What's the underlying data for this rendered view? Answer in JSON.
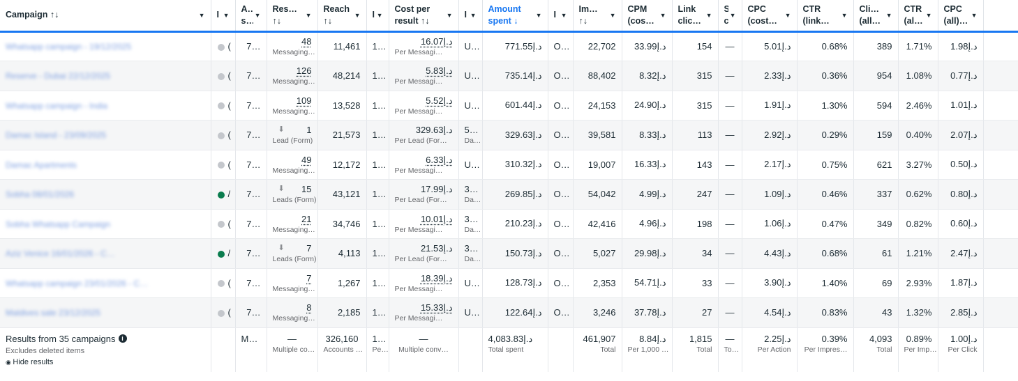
{
  "headers": [
    {
      "l1": "Campaign ↑↓",
      "l2": ""
    },
    {
      "l1": "I",
      "l2": ""
    },
    {
      "l1": "A…",
      "l2": "s…"
    },
    {
      "l1": "Res…",
      "l2": "↑↓"
    },
    {
      "l1": "Reach",
      "l2": "↑↓"
    },
    {
      "l1": "I",
      "l2": ""
    },
    {
      "l1": "Cost per",
      "l2": "result ↑↓"
    },
    {
      "l1": "I",
      "l2": ""
    },
    {
      "l1": "Amount",
      "l2": "spent ↓"
    },
    {
      "l1": "I",
      "l2": ""
    },
    {
      "l1": "Im…",
      "l2": "↑↓"
    },
    {
      "l1": "CPM",
      "l2": "(cos…"
    },
    {
      "l1": "Link",
      "l2": "clic…"
    },
    {
      "l1": "S",
      "l2": "c"
    },
    {
      "l1": "CPC",
      "l2": "(cost…"
    },
    {
      "l1": "CTR",
      "l2": "(link…"
    },
    {
      "l1": "Cli…",
      "l2": "(all…"
    },
    {
      "l1": "CTR",
      "l2": "(all…"
    },
    {
      "l1": "CPC",
      "l2": "(all)…"
    }
  ],
  "rows": [
    {
      "name": "Whatsapp campaign - 19/12/2025",
      "on": false,
      "d1": "(",
      "a": "7…",
      "res": "48",
      "resSub": "Messaging…",
      "resDl": false,
      "reach": "11,461",
      "f": "1…",
      "cpr": "16.07د.إ",
      "cprUl": true,
      "cprSub": "Per Messagi…",
      "e1": "U…",
      "e2": "",
      "spent": "771.55د.إ",
      "g": "O…",
      "imp": "22,702",
      "cpm": "33.99د.إ",
      "link": "154",
      "s": "—",
      "cpc": "5.01د.إ",
      "ctr": "0.68%",
      "cli": "389",
      "ctra": "1.71%",
      "cpca": "1.98د.إ"
    },
    {
      "name": "Reserve - Dubai 22/12/2025",
      "on": false,
      "d1": "(",
      "a": "7…",
      "res": "126",
      "resSub": "Messaging…",
      "resDl": false,
      "reach": "48,214",
      "f": "1…",
      "cpr": "5.83د.إ",
      "cprUl": true,
      "cprSub": "Per Messagi…",
      "e1": "U…",
      "e2": "",
      "spent": "735.14د.إ",
      "g": "O…",
      "imp": "88,402",
      "cpm": "8.32د.إ",
      "link": "315",
      "s": "—",
      "cpc": "2.33د.إ",
      "ctr": "0.36%",
      "cli": "954",
      "ctra": "1.08%",
      "cpca": "0.77د.إ"
    },
    {
      "name": "Whatsapp campaign - India",
      "on": false,
      "d1": "(",
      "a": "7…",
      "res": "109",
      "resSub": "Messaging…",
      "resDl": false,
      "reach": "13,528",
      "f": "1…",
      "cpr": "5.52د.إ",
      "cprUl": true,
      "cprSub": "Per Messagi…",
      "e1": "U…",
      "e2": "",
      "spent": "601.44د.إ",
      "g": "O…",
      "imp": "24,153",
      "cpm": "24.90د.إ",
      "link": "315",
      "s": "—",
      "cpc": "1.91د.إ",
      "ctr": "1.30%",
      "cli": "594",
      "ctra": "2.46%",
      "cpca": "1.01د.إ"
    },
    {
      "name": "Damac Island - 23/09/2025",
      "on": false,
      "d1": "(",
      "a": "7…",
      "res": "1",
      "resSub": "Lead (Form)",
      "resDl": true,
      "reach": "21,573",
      "f": "1…",
      "cpr": "329.63د.إ",
      "cprUl": false,
      "cprSub": "Per Lead (For…",
      "e1": "5…",
      "e2": "Da…",
      "spent": "329.63د.إ",
      "g": "O…",
      "imp": "39,581",
      "cpm": "8.33د.إ",
      "link": "113",
      "s": "—",
      "cpc": "2.92د.إ",
      "ctr": "0.29%",
      "cli": "159",
      "ctra": "0.40%",
      "cpca": "2.07د.إ"
    },
    {
      "name": "Damac Apartments",
      "on": false,
      "d1": "(",
      "a": "7…",
      "res": "49",
      "resSub": "Messaging…",
      "resDl": false,
      "reach": "12,172",
      "f": "1…",
      "cpr": "6.33د.إ",
      "cprUl": true,
      "cprSub": "Per Messagi…",
      "e1": "U…",
      "e2": "",
      "spent": "310.32د.إ",
      "g": "O…",
      "imp": "19,007",
      "cpm": "16.33د.إ",
      "link": "143",
      "s": "—",
      "cpc": "2.17د.إ",
      "ctr": "0.75%",
      "cli": "621",
      "ctra": "3.27%",
      "cpca": "0.50د.إ"
    },
    {
      "name": "Sobha 08/01/2026",
      "on": true,
      "d1": "/",
      "a": "7…",
      "res": "15",
      "resSub": "Leads (Form)",
      "resDl": true,
      "reach": "43,121",
      "f": "1…",
      "cpr": "17.99د.إ",
      "cprUl": false,
      "cprSub": "Per Lead (For…",
      "e1": "3…",
      "e2": "Da…",
      "spent": "269.85د.إ",
      "g": "O…",
      "imp": "54,042",
      "cpm": "4.99د.إ",
      "link": "247",
      "s": "—",
      "cpc": "1.09د.إ",
      "ctr": "0.46%",
      "cli": "337",
      "ctra": "0.62%",
      "cpca": "0.80د.إ"
    },
    {
      "name": "Sobha Whatsapp Campaign",
      "on": false,
      "d1": "(",
      "a": "7…",
      "res": "21",
      "resSub": "Messaging…",
      "resDl": false,
      "reach": "34,746",
      "f": "1…",
      "cpr": "10.01د.إ",
      "cprUl": true,
      "cprSub": "Per Messagi…",
      "e1": "3…",
      "e2": "Da…",
      "spent": "210.23د.إ",
      "g": "O…",
      "imp": "42,416",
      "cpm": "4.96د.إ",
      "link": "198",
      "s": "—",
      "cpc": "1.06د.إ",
      "ctr": "0.47%",
      "cli": "349",
      "ctra": "0.82%",
      "cpca": "0.60د.إ"
    },
    {
      "name": "Aziz Venice 16/01/2026 - C…",
      "on": true,
      "d1": "/",
      "a": "7…",
      "res": "7",
      "resSub": "Leads (Form)",
      "resDl": true,
      "reach": "4,113",
      "f": "1…",
      "cpr": "21.53د.إ",
      "cprUl": false,
      "cprSub": "Per Lead (For…",
      "e1": "3…",
      "e2": "Da…",
      "spent": "150.73د.إ",
      "g": "O…",
      "imp": "5,027",
      "cpm": "29.98د.إ",
      "link": "34",
      "s": "—",
      "cpc": "4.43د.إ",
      "ctr": "0.68%",
      "cli": "61",
      "ctra": "1.21%",
      "cpca": "2.47د.إ"
    },
    {
      "name": "Whatsapp campaign 23/01/2026 - C…",
      "on": false,
      "d1": "(",
      "a": "7…",
      "res": "7",
      "resSub": "Messaging…",
      "resDl": false,
      "reach": "1,267",
      "f": "1…",
      "cpr": "18.39د.إ",
      "cprUl": true,
      "cprSub": "Per Messagi…",
      "e1": "U…",
      "e2": "",
      "spent": "128.73د.إ",
      "g": "O…",
      "imp": "2,353",
      "cpm": "54.71د.إ",
      "link": "33",
      "s": "—",
      "cpc": "3.90د.إ",
      "ctr": "1.40%",
      "cli": "69",
      "ctra": "2.93%",
      "cpca": "1.87د.إ"
    },
    {
      "name": "Maldives sale 23/12/2025",
      "on": false,
      "d1": "(",
      "a": "7…",
      "res": "8",
      "resSub": "Messaging…",
      "resDl": false,
      "reach": "2,185",
      "f": "1…",
      "cpr": "15.33د.إ",
      "cprUl": true,
      "cprSub": "Per Messagi…",
      "e1": "U…",
      "e2": "",
      "spent": "122.64د.إ",
      "g": "O…",
      "imp": "3,246",
      "cpm": "37.78د.إ",
      "link": "27",
      "s": "—",
      "cpc": "4.54د.إ",
      "ctr": "0.83%",
      "cli": "43",
      "ctra": "1.32%",
      "cpca": "2.85د.إ"
    }
  ],
  "summary": {
    "title": "Results from 35 campaigns",
    "excludes": "Excludes deleted items",
    "hide": "Hide results",
    "a": "M…",
    "res": "—",
    "resSub": "Multiple co…",
    "reach": "326,160",
    "reachSub": "Accounts …",
    "f": "1…",
    "fSub": "Pe…",
    "cpr": "—",
    "cprSub": "Multiple conv…",
    "spent": "4,083.83د.إ",
    "spentSub": "Total spent",
    "imp": "461,907",
    "impSub": "Total",
    "cpm": "8.84د.إ",
    "cpmSub": "Per 1,000 …",
    "link": "1,815",
    "linkSub": "Total",
    "s": "—",
    "sSub": "To…",
    "cpc": "2.25د.إ",
    "cpcSub": "Per Action",
    "ctr": "0.39%",
    "ctrSub": "Per Impres…",
    "cli": "4,093",
    "cliSub": "Total",
    "ctra": "0.89%",
    "ctraSub": "Per Imp…",
    "cpca": "1.00د.إ",
    "cpcaSub": "Per Click"
  }
}
